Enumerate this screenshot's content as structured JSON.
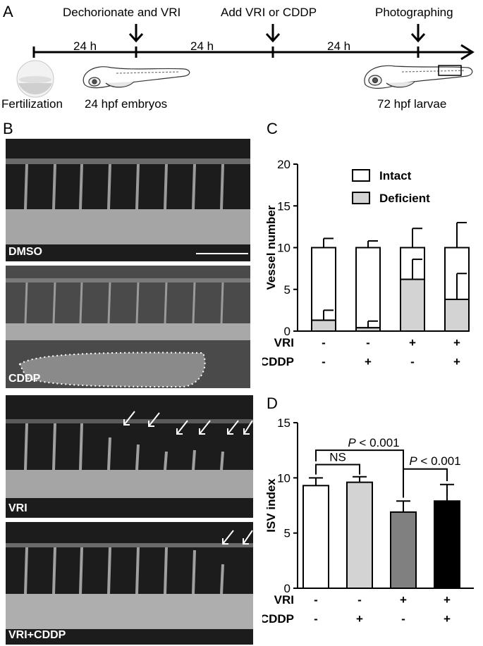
{
  "panels": {
    "a": "A",
    "b": "B",
    "c": "C",
    "d": "D"
  },
  "timeline": {
    "events": [
      "Dechorionate and VRI",
      "Add VRI or CDDP",
      "Photographing"
    ],
    "durations": [
      "24 h",
      "24 h",
      "24 h"
    ],
    "stages": [
      "Fertilization",
      "24 hpf embryos",
      "72 hpf larvae"
    ]
  },
  "micrographs": [
    {
      "label": "DMSO"
    },
    {
      "label": "CDDP"
    },
    {
      "label": "VRI"
    },
    {
      "label": "VRI+CDDP"
    }
  ],
  "chart_data": [
    {
      "type": "bar",
      "stacked": true,
      "ylabel": "Vessel number",
      "ylim": [
        0,
        20
      ],
      "yticks": [
        0,
        5,
        10,
        15,
        20
      ],
      "row_labels": [
        "VRI",
        "CDDP"
      ],
      "conditions": [
        [
          "-",
          "-"
        ],
        [
          "-",
          "+"
        ],
        [
          "+",
          "-"
        ],
        [
          "+",
          "+"
        ]
      ],
      "series": [
        {
          "name": "Deficient",
          "color": "#d3d3d3",
          "values": [
            1.3,
            0.4,
            6.2,
            3.8
          ],
          "errors": [
            1.2,
            0.8,
            2.4,
            3.1
          ]
        },
        {
          "name": "Intact",
          "color": "#ffffff",
          "values": [
            8.7,
            9.6,
            3.8,
            6.2
          ],
          "errors": [
            1.1,
            0.8,
            2.3,
            3.0
          ]
        }
      ],
      "legend": "top-right"
    },
    {
      "type": "bar",
      "ylabel": "ISV index",
      "ylim": [
        0,
        15
      ],
      "yticks": [
        0,
        5,
        10,
        15
      ],
      "row_labels": [
        "VRI",
        "CDDP"
      ],
      "conditions": [
        [
          "-",
          "-"
        ],
        [
          "-",
          "+"
        ],
        [
          "+",
          "-"
        ],
        [
          "+",
          "+"
        ]
      ],
      "values": [
        9.3,
        9.6,
        6.9,
        7.9
      ],
      "errors": [
        0.7,
        0.5,
        1.0,
        1.5
      ],
      "colors": [
        "#ffffff",
        "#d3d3d3",
        "#808080",
        "#000000"
      ],
      "annotations": {
        "ns": "NS",
        "p1_italic": "P",
        "p1_rest": " < 0.001",
        "p2_italic": "P",
        "p2_rest": " < 0.001"
      }
    }
  ]
}
